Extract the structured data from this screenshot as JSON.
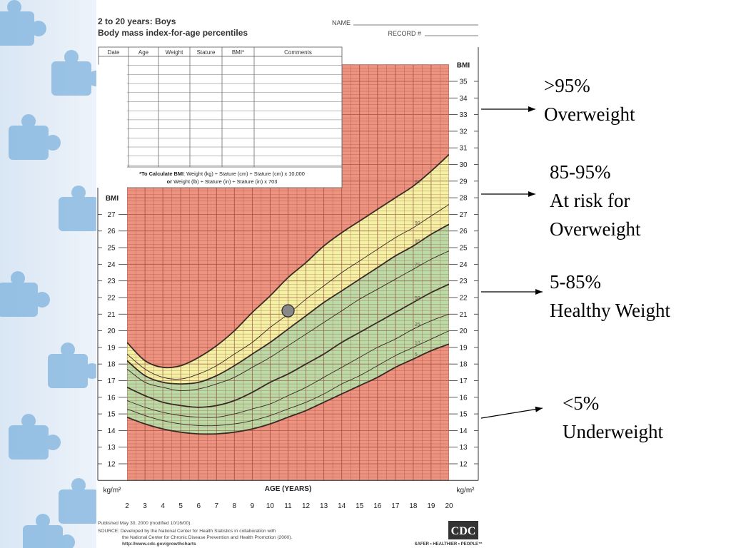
{
  "chart_data": {
    "type": "line",
    "title": "2 to 20 years: Boys",
    "subtitle": "Body mass index-for-age percentiles",
    "xlabel": "AGE (YEARS)",
    "ylabel": "BMI",
    "yunit": "kg/m²",
    "xlim": [
      2,
      20
    ],
    "ylim": [
      11,
      36
    ],
    "x_ticks": [
      2,
      3,
      4,
      5,
      6,
      7,
      8,
      9,
      10,
      11,
      12,
      13,
      14,
      15,
      16,
      17,
      18,
      19,
      20
    ],
    "y_ticks_right": [
      12,
      13,
      14,
      15,
      16,
      17,
      18,
      19,
      20,
      21,
      22,
      23,
      24,
      25,
      26,
      27,
      28,
      29,
      30,
      31,
      32,
      33,
      34,
      35
    ],
    "y_ticks_left": [
      12,
      13,
      14,
      15,
      16,
      17,
      18,
      19,
      20,
      21,
      22,
      23,
      24,
      25,
      26,
      27
    ],
    "grid": true,
    "x": [
      2,
      3,
      4,
      5,
      6,
      7,
      8,
      9,
      10,
      11,
      12,
      13,
      14,
      15,
      16,
      17,
      18,
      19,
      20
    ],
    "series": [
      {
        "name": "95",
        "values": [
          19.3,
          18.2,
          17.8,
          17.9,
          18.4,
          19.1,
          20.0,
          21.1,
          22.1,
          23.2,
          24.1,
          25.1,
          25.9,
          26.6,
          27.3,
          28.0,
          28.7,
          29.6,
          30.6
        ]
      },
      {
        "name": "90",
        "values": [
          18.6,
          17.7,
          17.2,
          17.1,
          17.4,
          17.9,
          18.6,
          19.3,
          20.2,
          21.0,
          21.9,
          22.7,
          23.5,
          24.2,
          24.9,
          25.6,
          26.2,
          26.9,
          27.6
        ]
      },
      {
        "name": "85",
        "values": [
          18.2,
          17.3,
          16.9,
          16.8,
          16.9,
          17.3,
          17.9,
          18.6,
          19.3,
          20.1,
          20.9,
          21.7,
          22.4,
          23.1,
          23.8,
          24.5,
          25.1,
          25.8,
          26.4
        ]
      },
      {
        "name": "75",
        "values": [
          17.7,
          16.9,
          16.6,
          16.4,
          16.5,
          16.8,
          17.2,
          17.8,
          18.4,
          19.1,
          19.8,
          20.5,
          21.2,
          21.9,
          22.5,
          23.1,
          23.7,
          24.3,
          24.8
        ]
      },
      {
        "name": "50",
        "values": [
          16.6,
          16.1,
          15.7,
          15.5,
          15.4,
          15.5,
          15.8,
          16.3,
          16.9,
          17.4,
          18.0,
          18.6,
          19.3,
          19.9,
          20.5,
          21.1,
          21.7,
          22.3,
          22.8
        ]
      },
      {
        "name": "25",
        "values": [
          15.8,
          15.4,
          15.1,
          14.9,
          14.8,
          14.8,
          15.0,
          15.3,
          15.6,
          16.1,
          16.6,
          17.2,
          17.8,
          18.4,
          19.0,
          19.5,
          20.1,
          20.6,
          21.0
        ]
      },
      {
        "name": "10",
        "values": [
          15.3,
          14.9,
          14.6,
          14.4,
          14.3,
          14.3,
          14.4,
          14.6,
          14.9,
          15.3,
          15.7,
          16.2,
          16.8,
          17.3,
          17.9,
          18.5,
          19.0,
          19.5,
          20.0
        ]
      },
      {
        "name": "5",
        "values": [
          14.8,
          14.4,
          14.1,
          13.9,
          13.8,
          13.8,
          13.9,
          14.1,
          14.4,
          14.8,
          15.2,
          15.7,
          16.2,
          16.7,
          17.2,
          17.8,
          18.3,
          18.8,
          19.2
        ]
      }
    ],
    "band_colors": {
      "underweight": "#ee9380",
      "healthy": "#bcdaa6",
      "at_risk": "#f4f0a4",
      "overweight": "#ee9380"
    },
    "marker": {
      "x": 11,
      "y": 21.2,
      "color": "#888888"
    }
  },
  "form": {
    "name_label": "NAME",
    "record_label": "RECORD #",
    "table_headers": [
      "Date",
      "Age",
      "Weight",
      "Stature",
      "BMI*",
      "Comments"
    ],
    "bmi_note_bold": "*To Calculate BMI",
    "bmi_note_rest": ": Weight (kg) ÷ Stature (cm) ÷ Stature (cm) x 10,000",
    "bmi_note_line2_bold": "or",
    "bmi_note_line2_rest": " Weight (lb) ÷ Stature (in) ÷ Stature (in) x 703"
  },
  "footer": {
    "published": "Published May 30, 2000 (modified 10/16/00).",
    "source_1": "SOURCE: Developed by the National Center for Health Statistics in collaboration with",
    "source_2": "the National Center for Chronic Disease Prevention and Health Promotion (2000).",
    "url": "http://www.cdc.gov/growthcharts",
    "logo_text": "CDC",
    "tagline": "SAFER • HEALTHIER • PEOPLE™"
  },
  "callouts": [
    {
      "line1": ">95%",
      "line2": "Overweight"
    },
    {
      "line1": "85-95%",
      "line2": "At risk for",
      "line3": "Overweight"
    },
    {
      "line1": "5-85%",
      "line2": "Healthy Weight"
    },
    {
      "line1": "<5%",
      "line2": "Underweight"
    }
  ],
  "colors": {
    "line": "#3a2a25",
    "grid": "#8a3b30"
  }
}
